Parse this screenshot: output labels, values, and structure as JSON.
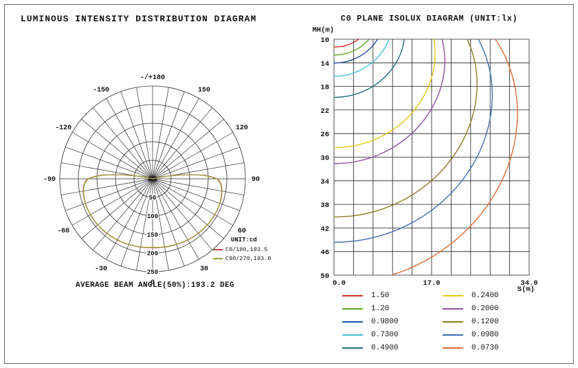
{
  "frame": {
    "bg": "#ffffff",
    "border_color": "#666666"
  },
  "left_panel": {
    "title": "LUMINOUS INTENSITY DISTRIBUTION DIAGRAM",
    "legend_title": "UNIT:cd",
    "footer": "AVERAGE BEAM ANGLE(50%):193.2 DEG"
  },
  "right_panel": {
    "title": "C0 PLANE ISOLUX DIAGRAM (UNIT:lx)",
    "y_axis_label": "MH(m)",
    "x_axis_label": "S(m)"
  },
  "chart_data": [
    {
      "type": "polar",
      "title": "LUMINOUS INTENSITY DISTRIBUTION DIAGRAM",
      "unit": "cd",
      "angle_step_deg": 10,
      "r_max": 250,
      "radial_ticks": [
        50,
        100,
        150,
        200,
        250
      ],
      "angle_labels": [
        {
          "angle": 0,
          "label": "0"
        },
        {
          "angle": 30,
          "label": "30"
        },
        {
          "angle": -30,
          "label": "-30"
        },
        {
          "angle": 60,
          "label": "60"
        },
        {
          "angle": -60,
          "label": "-60"
        },
        {
          "angle": 90,
          "label": "90"
        },
        {
          "angle": -90,
          "label": "-90"
        },
        {
          "angle": 120,
          "label": "120"
        },
        {
          "angle": -120,
          "label": "-120"
        },
        {
          "angle": 150,
          "label": "150"
        },
        {
          "angle": -150,
          "label": "-150"
        },
        {
          "angle": 180,
          "label": "-/+180"
        }
      ],
      "series": [
        {
          "name": "C0/180,193.5",
          "color": "#c0443a",
          "max_cd": 193.5,
          "points": [
            [
              0,
              185
            ],
            [
              10,
              186.5
            ],
            [
              20,
              188
            ],
            [
              30,
              190
            ],
            [
              40,
              191.5
            ],
            [
              50,
              193
            ],
            [
              60,
              193.5
            ],
            [
              70,
              193
            ],
            [
              80,
              190
            ],
            [
              85,
              186
            ],
            [
              90,
              176
            ],
            [
              94,
              140
            ],
            [
              96.6,
              97
            ],
            [
              100,
              45
            ],
            [
              104,
              15
            ],
            [
              108,
              4
            ],
            [
              115,
              1
            ],
            [
              130,
              0
            ],
            [
              180,
              0
            ]
          ]
        },
        {
          "name": "C90/270,193.0",
          "color": "#9aa23a",
          "max_cd": 193.0,
          "points": [
            [
              0,
              184
            ],
            [
              10,
              186
            ],
            [
              20,
              187.5
            ],
            [
              30,
              189.5
            ],
            [
              40,
              191
            ],
            [
              50,
              192.5
            ],
            [
              60,
              193
            ],
            [
              70,
              192.5
            ],
            [
              80,
              189
            ],
            [
              85,
              185
            ],
            [
              90,
              174
            ],
            [
              94,
              138
            ],
            [
              96.6,
              96
            ],
            [
              100,
              43
            ],
            [
              104,
              14
            ],
            [
              108,
              3
            ],
            [
              115,
              1
            ],
            [
              130,
              0
            ],
            [
              180,
              0
            ]
          ]
        }
      ],
      "beam_angle_note": "AVERAGE BEAM ANGLE(50%):193.2 DEG"
    },
    {
      "type": "isolux",
      "title": "C0 PLANE ISOLUX DIAGRAM (UNIT:lx)",
      "unit": "lx",
      "x_range": [
        0,
        34
      ],
      "y_range": [
        10,
        50
      ],
      "grid_cols": 10,
      "grid_rows": 10,
      "x_ticks": [
        {
          "v": 0,
          "label": "0.0"
        },
        {
          "v": 17,
          "label": "17.0"
        },
        {
          "v": 34,
          "label": "34.0"
        }
      ],
      "y_ticks": [
        10,
        14,
        18,
        22,
        26,
        30,
        34,
        38,
        42,
        46,
        50
      ],
      "intensity_cd": 193.5,
      "contours": [
        {
          "value": "1.50",
          "lux": 1.5,
          "color": "#cc2f1e"
        },
        {
          "value": "1.20",
          "lux": 1.2,
          "color": "#5ea320"
        },
        {
          "value": "0.9800",
          "lux": 0.98,
          "color": "#1d4f9e"
        },
        {
          "value": "0.7300",
          "lux": 0.73,
          "color": "#3fc0d2"
        },
        {
          "value": "0.4900",
          "lux": 0.49,
          "color": "#1c6f76"
        },
        {
          "value": "0.2400",
          "lux": 0.24,
          "color": "#ddc916"
        },
        {
          "value": "0.2000",
          "lux": 0.2,
          "color": "#8e4fa5"
        },
        {
          "value": "0.1200",
          "lux": 0.12,
          "color": "#8a7c1f"
        },
        {
          "value": "0.0980",
          "lux": 0.098,
          "color": "#3a6fae"
        },
        {
          "value": "0.0730",
          "lux": 0.073,
          "color": "#e06a2e"
        }
      ]
    }
  ]
}
